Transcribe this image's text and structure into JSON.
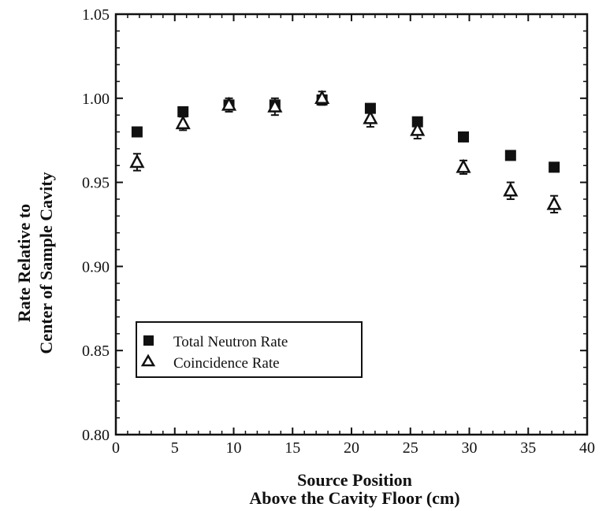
{
  "chart_data": {
    "type": "scatter",
    "title": "",
    "xlabel_lines": [
      "Source Position",
      "Above the Cavity Floor (cm)"
    ],
    "ylabel_lines": [
      "Rate Relative to",
      "Center of Sample Cavity"
    ],
    "xlim": [
      0,
      40
    ],
    "ylim": [
      0.8,
      1.05
    ],
    "x_ticks": [
      "0",
      "5",
      "10",
      "15",
      "20",
      "25",
      "30",
      "35",
      "40"
    ],
    "y_ticks": [
      "0.80",
      "0.85",
      "0.90",
      "0.95",
      "1.00",
      "1.05"
    ],
    "grid": false,
    "legend_position": "lower-left",
    "series": [
      {
        "name": "Total Neutron Rate",
        "marker": "filled-square",
        "color": "#111111",
        "x": [
          1.8,
          5.7,
          9.6,
          13.5,
          17.5,
          21.6,
          25.6,
          29.5,
          33.5,
          37.2
        ],
        "y": [
          0.98,
          0.992,
          0.996,
          0.996,
          0.999,
          0.994,
          0.986,
          0.977,
          0.966,
          0.959
        ],
        "error": [
          0.002,
          0.002,
          0.002,
          0.002,
          0.002,
          0.002,
          0.002,
          0.002,
          0.002,
          0.002
        ]
      },
      {
        "name": "Coincidence Rate",
        "marker": "open-triangle",
        "color": "#111111",
        "x": [
          1.8,
          5.7,
          9.6,
          13.5,
          17.5,
          21.6,
          25.6,
          29.5,
          33.5,
          37.2
        ],
        "y": [
          0.962,
          0.985,
          0.996,
          0.995,
          1.0,
          0.988,
          0.981,
          0.959,
          0.945,
          0.937
        ],
        "error": [
          0.005,
          0.004,
          0.004,
          0.005,
          0.004,
          0.005,
          0.005,
          0.004,
          0.005,
          0.005
        ]
      }
    ]
  }
}
